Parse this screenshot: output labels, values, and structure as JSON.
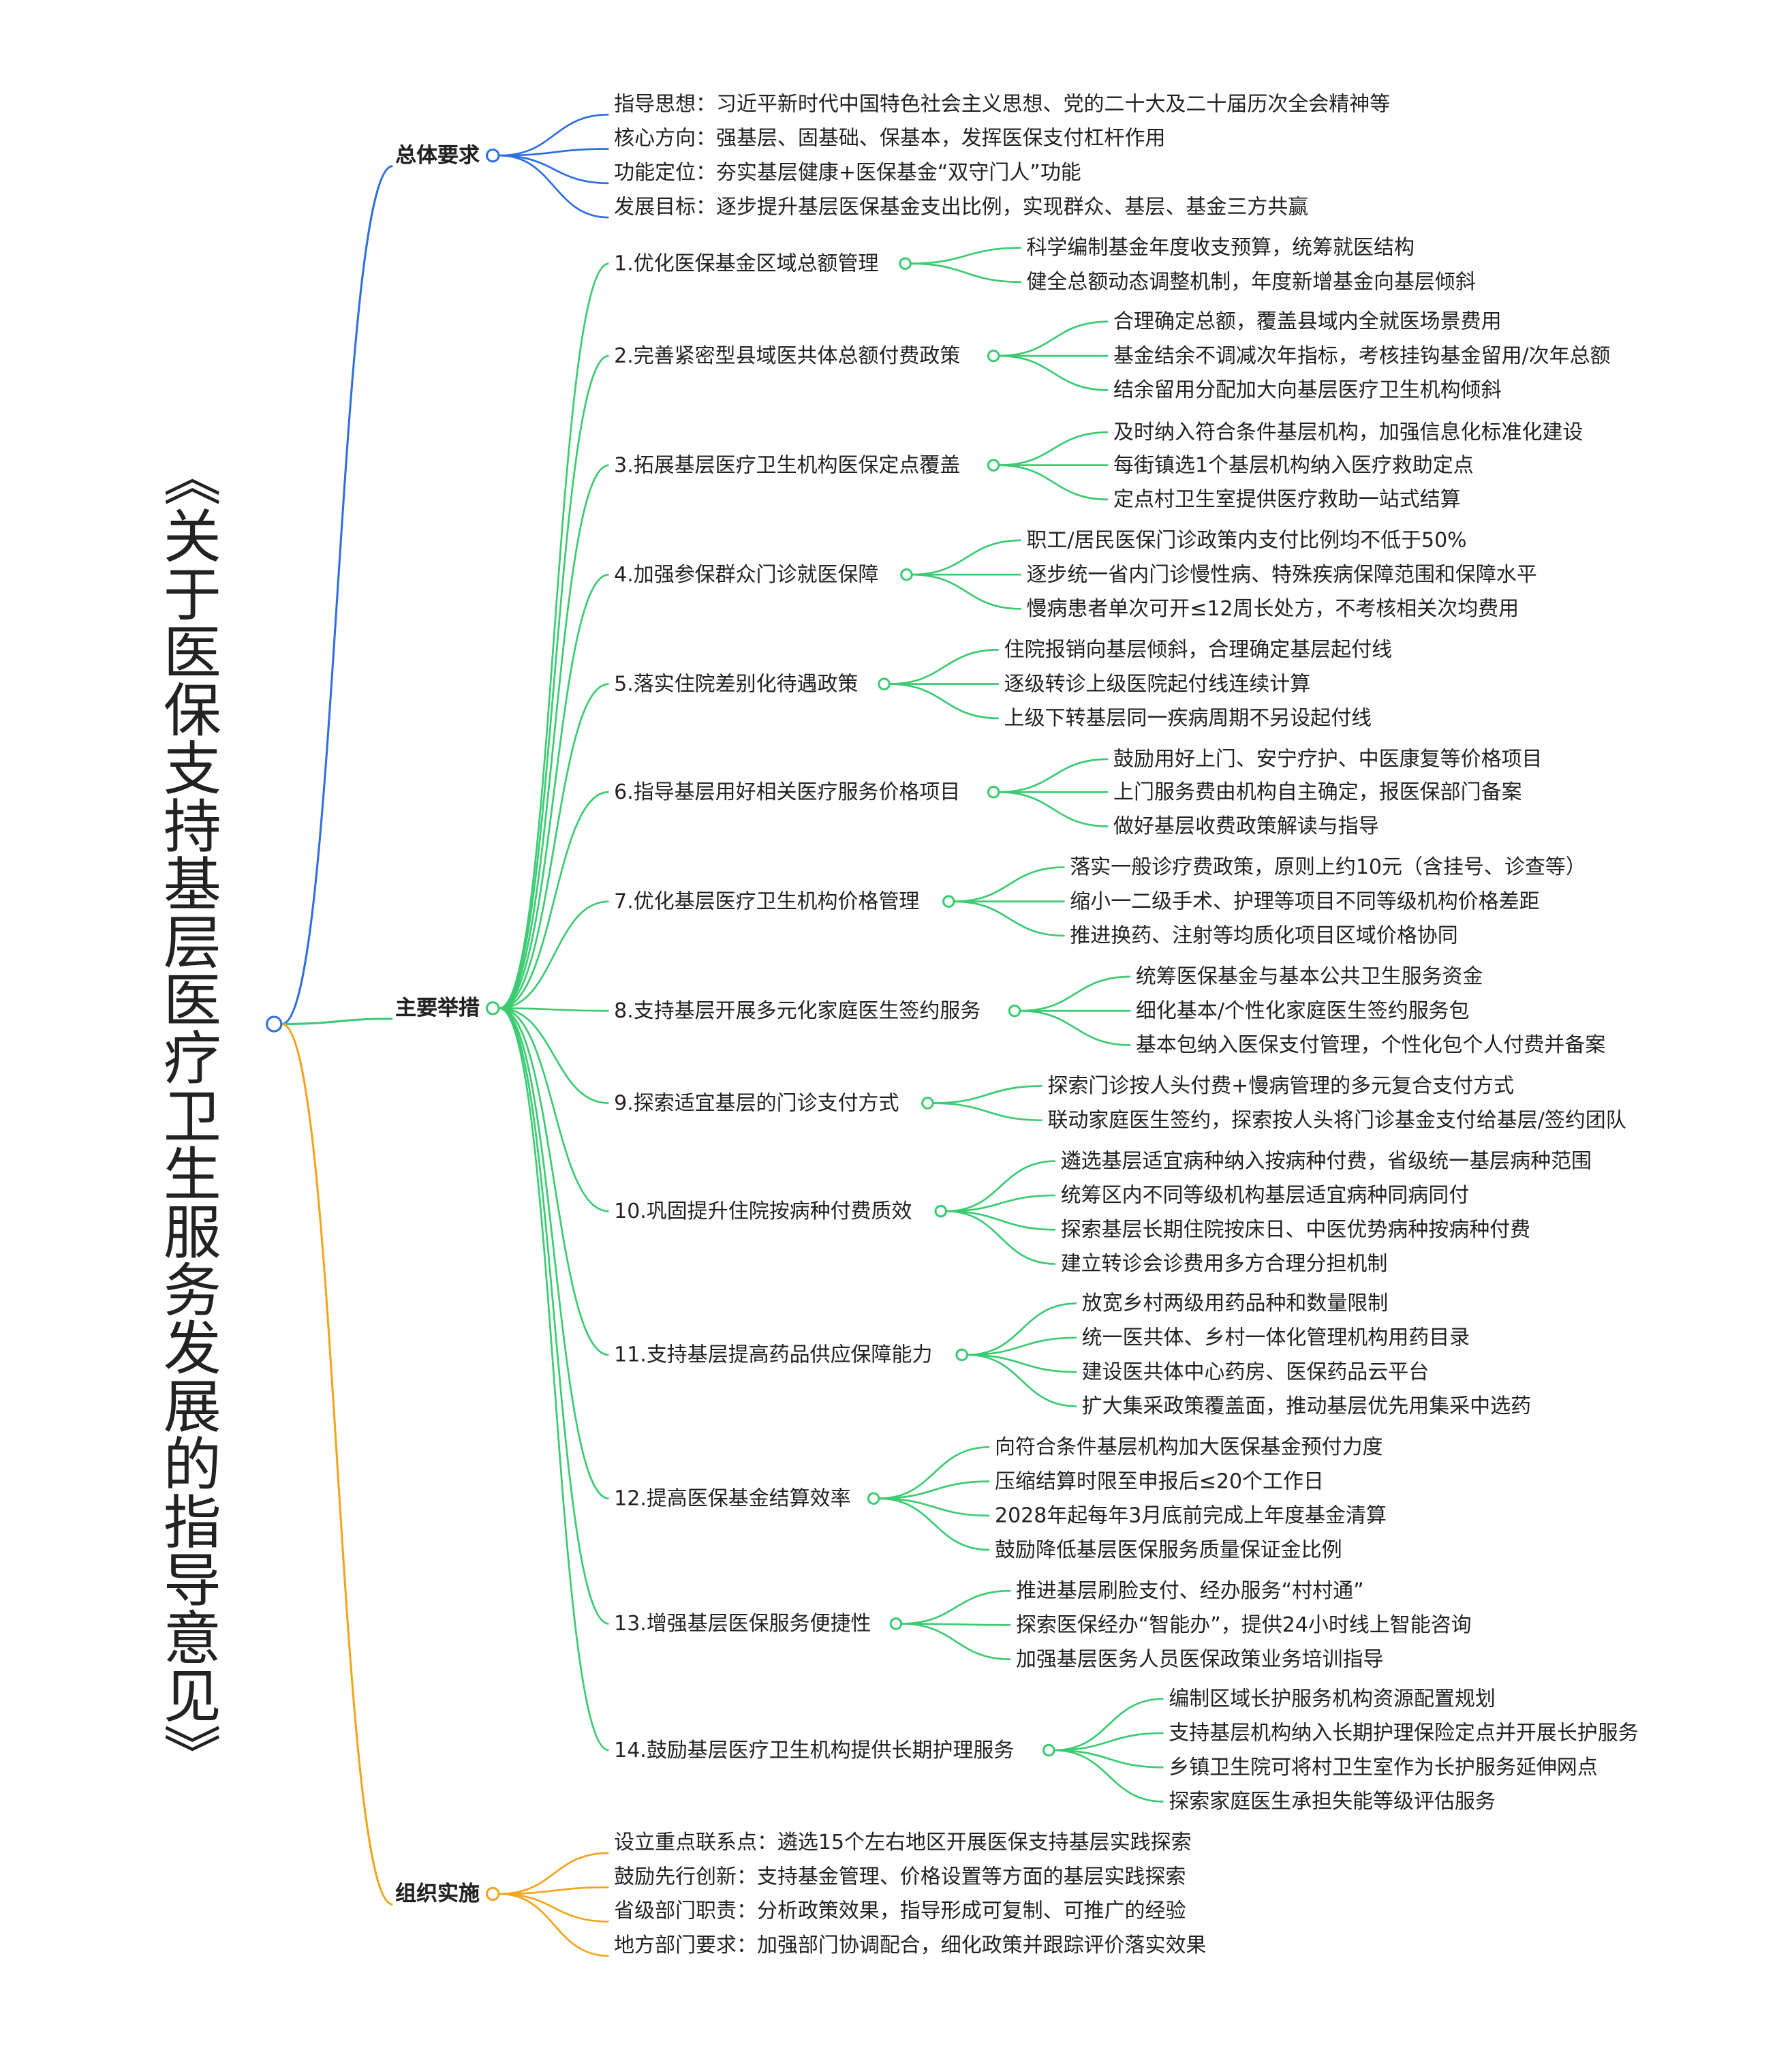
{
  "title": "《关于医保支持基层医疗卫生服务发展的指导意见》",
  "colors": {
    "general": "#2f6fe0",
    "measures": "#3ccb72",
    "implementation": "#f2a51c"
  },
  "branches": [
    {
      "label": "总体要求",
      "items": [
        {
          "label": "指导思想：习近平新时代中国特色社会主义思想、党的二十大及二十届历次全会精神等",
          "children": []
        },
        {
          "label": "核心方向：强基层、固基础、保基本，发挥医保支付杠杆作用",
          "children": []
        },
        {
          "label": "功能定位：夯实基层健康+医保基金“双守门人”功能",
          "children": []
        },
        {
          "label": "发展目标：逐步提升基层医保基金支出比例，实现群众、基层、基金三方共赢",
          "children": []
        }
      ]
    },
    {
      "label": "主要举措",
      "items": [
        {
          "label": "1.优化医保基金区域总额管理",
          "children": [
            "科学编制基金年度收支预算，统筹就医结构",
            "健全总额动态调整机制，年度新增基金向基层倾斜"
          ]
        },
        {
          "label": "2.完善紧密型县域医共体总额付费政策",
          "children": [
            "合理确定总额，覆盖县域内全就医场景费用",
            "基金结余不调减次年指标，考核挂钩基金留用/次年总额",
            "结余留用分配加大向基层医疗卫生机构倾斜"
          ]
        },
        {
          "label": "3.拓展基层医疗卫生机构医保定点覆盖",
          "children": [
            "及时纳入符合条件基层机构，加强信息化标准化建设",
            "每街镇选1个基层机构纳入医疗救助定点",
            "定点村卫生室提供医疗救助一站式结算"
          ]
        },
        {
          "label": "4.加强参保群众门诊就医保障",
          "children": [
            "职工/居民医保门诊政策内支付比例均不低于50%",
            "逐步统一省内门诊慢性病、特殊疾病保障范围和保障水平",
            "慢病患者单次可开≤12周长处方，不考核相关次均费用"
          ]
        },
        {
          "label": "5.落实住院差别化待遇政策",
          "children": [
            "住院报销向基层倾斜，合理确定基层起付线",
            "逐级转诊上级医院起付线连续计算",
            "上级下转基层同一疾病周期不另设起付线"
          ]
        },
        {
          "label": "6.指导基层用好相关医疗服务价格项目",
          "children": [
            "鼓励用好上门、安宁疗护、中医康复等价格项目",
            "上门服务费由机构自主确定，报医保部门备案",
            "做好基层收费政策解读与指导"
          ]
        },
        {
          "label": "7.优化基层医疗卫生机构价格管理",
          "children": [
            "落实一般诊疗费政策，原则上约10元（含挂号、诊查等）",
            "缩小一二级手术、护理等项目不同等级机构价格差距",
            "推进换药、注射等均质化项目区域价格协同"
          ]
        },
        {
          "label": "8.支持基层开展多元化家庭医生签约服务",
          "children": [
            "统筹医保基金与基本公共卫生服务资金",
            "细化基本/个性化家庭医生签约服务包",
            "基本包纳入医保支付管理，个性化包个人付费并备案"
          ]
        },
        {
          "label": "9.探索适宜基层的门诊支付方式",
          "children": [
            "探索门诊按人头付费+慢病管理的多元复合支付方式",
            "联动家庭医生签约，探索按人头将门诊基金支付给基层/签约团队"
          ]
        },
        {
          "label": "10.巩固提升住院按病种付费质效",
          "children": [
            "遴选基层适宜病种纳入按病种付费，省级统一基层病种范围",
            "统筹区内不同等级机构基层适宜病种同病同付",
            "探索基层长期住院按床日、中医优势病种按病种付费",
            "建立转诊会诊费用多方合理分担机制"
          ]
        },
        {
          "label": "11.支持基层提高药品供应保障能力",
          "children": [
            "放宽乡村两级用药品种和数量限制",
            "统一医共体、乡村一体化管理机构用药目录",
            "建设医共体中心药房、医保药品云平台",
            "扩大集采政策覆盖面，推动基层优先用集采中选药"
          ]
        },
        {
          "label": "12.提高医保基金结算效率",
          "children": [
            "向符合条件基层机构加大医保基金预付力度",
            "压缩结算时限至申报后≤20个工作日",
            "2028年起每年3月底前完成上年度基金清算",
            "鼓励降低基层医保服务质量保证金比例"
          ]
        },
        {
          "label": "13.增强基层医保服务便捷性",
          "children": [
            "推进基层刷脸支付、经办服务“村村通”",
            "探索医保经办“智能办”，提供24小时线上智能咨询",
            "加强基层医务人员医保政策业务培训指导"
          ]
        },
        {
          "label": "14.鼓励基层医疗卫生机构提供长期护理服务",
          "children": [
            "编制区域长护服务机构资源配置规划",
            "支持基层机构纳入长期护理保险定点并开展长护服务",
            "乡镇卫生院可将村卫生室作为长护服务延伸网点",
            "探索家庭医生承担失能等级评估服务"
          ]
        }
      ]
    },
    {
      "label": "组织实施",
      "items": [
        {
          "label": "设立重点联系点：遴选15个左右地区开展医保支持基层实践探索",
          "children": []
        },
        {
          "label": "鼓励先行创新：支持基金管理、价格设置等方面的基层实践探索",
          "children": []
        },
        {
          "label": "省级部门职责：分析政策效果，指导形成可复制、可推广的经验",
          "children": []
        },
        {
          "label": "地方部门要求：加强部门协调配合，细化政策并跟踪评价落实效果",
          "children": []
        }
      ]
    }
  ]
}
